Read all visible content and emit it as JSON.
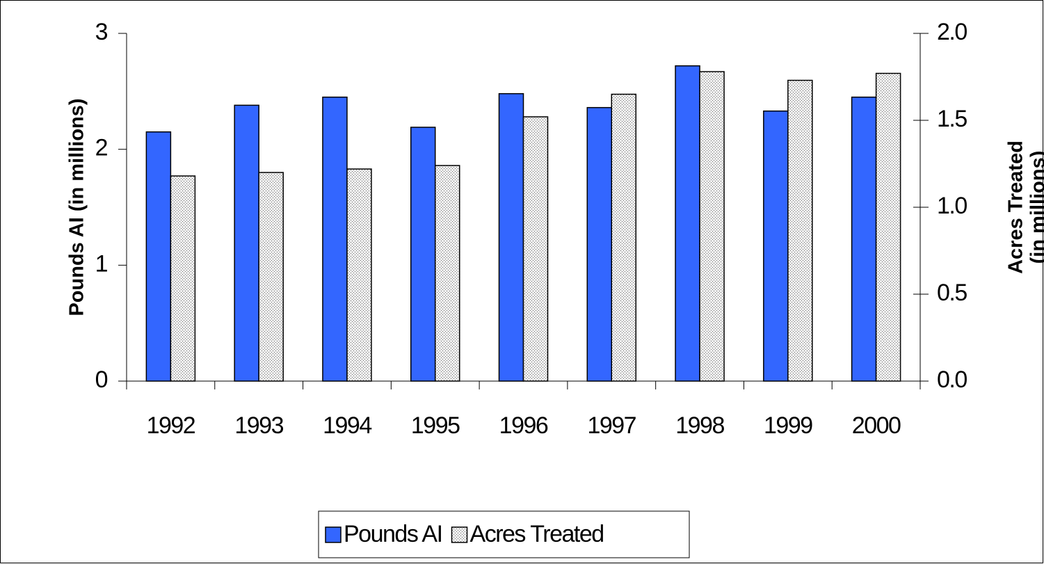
{
  "chart_data": {
    "type": "bar",
    "categories": [
      "1992",
      "1993",
      "1994",
      "1995",
      "1996",
      "1997",
      "1998",
      "1999",
      "2000"
    ],
    "series": [
      {
        "name": "Pounds AI",
        "color": "#3366ff",
        "values": [
          2.15,
          2.38,
          2.45,
          2.19,
          2.48,
          2.36,
          2.72,
          2.33,
          2.45
        ]
      },
      {
        "name": "Acres Treated",
        "color": "#d9d9d9",
        "axis": "y2",
        "values": [
          1.18,
          1.2,
          1.22,
          1.24,
          1.52,
          1.65,
          1.78,
          1.73,
          1.77
        ]
      }
    ],
    "y_label": "Pounds AI (in millions)",
    "y2_label": [
      "Acres Treated",
      "(in millions)"
    ],
    "ylim": [
      0,
      3
    ],
    "yticks": [
      0,
      1,
      2,
      3
    ],
    "y2lim": [
      0,
      2
    ],
    "y2ticks": [
      {
        "value": 0,
        "label": "0.0"
      },
      0.5,
      {
        "value": 1,
        "label": "1.0"
      },
      1.5,
      {
        "value": 2,
        "label": "2.0"
      }
    ],
    "legend": "bottom",
    "grid": false
  }
}
